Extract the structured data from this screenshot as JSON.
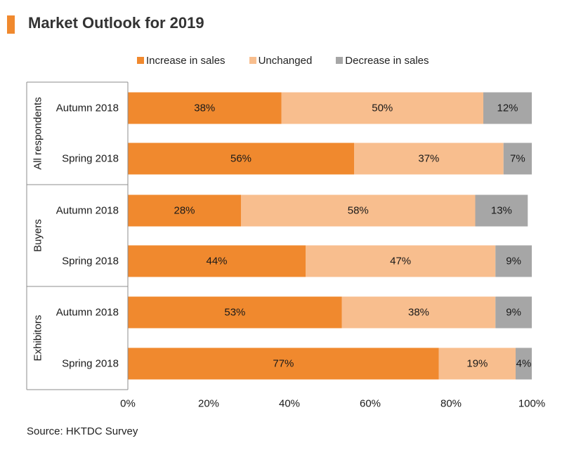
{
  "title": "Market Outlook for 2019",
  "source": "Source: HKTDC Survey",
  "chart_data": {
    "type": "bar",
    "orientation": "horizontal",
    "stacked": true,
    "xlim": [
      0,
      100
    ],
    "x_ticks": [
      "0%",
      "20%",
      "40%",
      "60%",
      "80%",
      "100%"
    ],
    "legend_position": "top",
    "groups": [
      {
        "name": "All respondents",
        "categories": [
          "Autumn 2018",
          "Spring 2018"
        ]
      },
      {
        "name": "Buyers",
        "categories": [
          "Autumn 2018",
          "Spring 2018"
        ]
      },
      {
        "name": "Exhibitors",
        "categories": [
          "Autumn 2018",
          "Spring 2018"
        ]
      }
    ],
    "series": [
      {
        "name": "Increase in sales",
        "color": "#f0892e",
        "values": [
          38,
          56,
          28,
          44,
          53,
          77
        ]
      },
      {
        "name": "Unchanged",
        "color": "#f8be8e",
        "values": [
          50,
          37,
          58,
          47,
          38,
          19
        ]
      },
      {
        "name": "Decrease in sales",
        "color": "#a6a6a6",
        "values": [
          12,
          7,
          13,
          9,
          9,
          4
        ]
      }
    ]
  }
}
